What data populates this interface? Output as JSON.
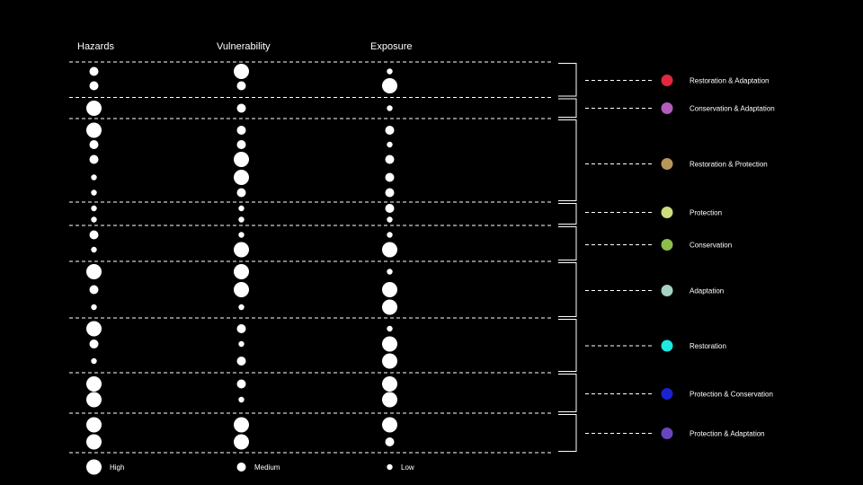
{
  "headers": {
    "hazards": "Hazards",
    "vulnerability": "Vulnerability",
    "exposure": "Exposure"
  },
  "levels": {
    "high": "High",
    "medium": "Medium",
    "low": "Low"
  },
  "groups": [
    {
      "category": "Restoration & Adaptation",
      "color": "#e0283f",
      "rows": [
        {
          "hazards": "medium",
          "vulnerability": "high",
          "exposure": "low"
        },
        {
          "hazards": "medium",
          "vulnerability": "medium",
          "exposure": "high"
        }
      ]
    },
    {
      "category": "Conservation & Adaptation",
      "color": "#b25dbb",
      "rows": [
        {
          "hazards": "high",
          "vulnerability": "medium",
          "exposure": "low"
        }
      ]
    },
    {
      "category": "Restoration & Protection",
      "color": "#b8985a",
      "rows": [
        {
          "hazards": "high",
          "vulnerability": "medium",
          "exposure": "medium"
        },
        {
          "hazards": "medium",
          "vulnerability": "medium",
          "exposure": "low"
        },
        {
          "hazards": "medium",
          "vulnerability": "high",
          "exposure": "medium"
        },
        {
          "hazards": "low",
          "vulnerability": "high",
          "exposure": "medium"
        },
        {
          "hazards": "low",
          "vulnerability": "medium",
          "exposure": "medium"
        }
      ]
    },
    {
      "category": "Protection",
      "color": "#cddc7e",
      "rows": [
        {
          "hazards": "low",
          "vulnerability": "low",
          "exposure": "medium"
        },
        {
          "hazards": "low",
          "vulnerability": "low",
          "exposure": "low"
        }
      ]
    },
    {
      "category": "Conservation",
      "color": "#8bbe4a",
      "rows": [
        {
          "hazards": "medium",
          "vulnerability": "low",
          "exposure": "low"
        },
        {
          "hazards": "low",
          "vulnerability": "high",
          "exposure": "high"
        }
      ]
    },
    {
      "category": "Adaptation",
      "color": "#a4d2c4",
      "rows": [
        {
          "hazards": "high",
          "vulnerability": "high",
          "exposure": "low"
        },
        {
          "hazards": "medium",
          "vulnerability": "high",
          "exposure": "high"
        },
        {
          "hazards": "low",
          "vulnerability": "low",
          "exposure": "high"
        }
      ]
    },
    {
      "category": "Restoration",
      "color": "#1ee8e0",
      "rows": [
        {
          "hazards": "high",
          "vulnerability": "medium",
          "exposure": "low"
        },
        {
          "hazards": "medium",
          "vulnerability": "low",
          "exposure": "high"
        },
        {
          "hazards": "low",
          "vulnerability": "medium",
          "exposure": "high"
        }
      ]
    },
    {
      "category": "Protection & Conservation",
      "color": "#1b22cf",
      "rows": [
        {
          "hazards": "high",
          "vulnerability": "medium",
          "exposure": "high"
        },
        {
          "hazards": "high",
          "vulnerability": "low",
          "exposure": "high"
        }
      ]
    },
    {
      "category": "Protection & Adaptation",
      "color": "#6a45bf",
      "rows": [
        {
          "hazards": "high",
          "vulnerability": "high",
          "exposure": "high"
        },
        {
          "hazards": "high",
          "vulnerability": "high",
          "exposure": "medium"
        }
      ]
    }
  ]
}
